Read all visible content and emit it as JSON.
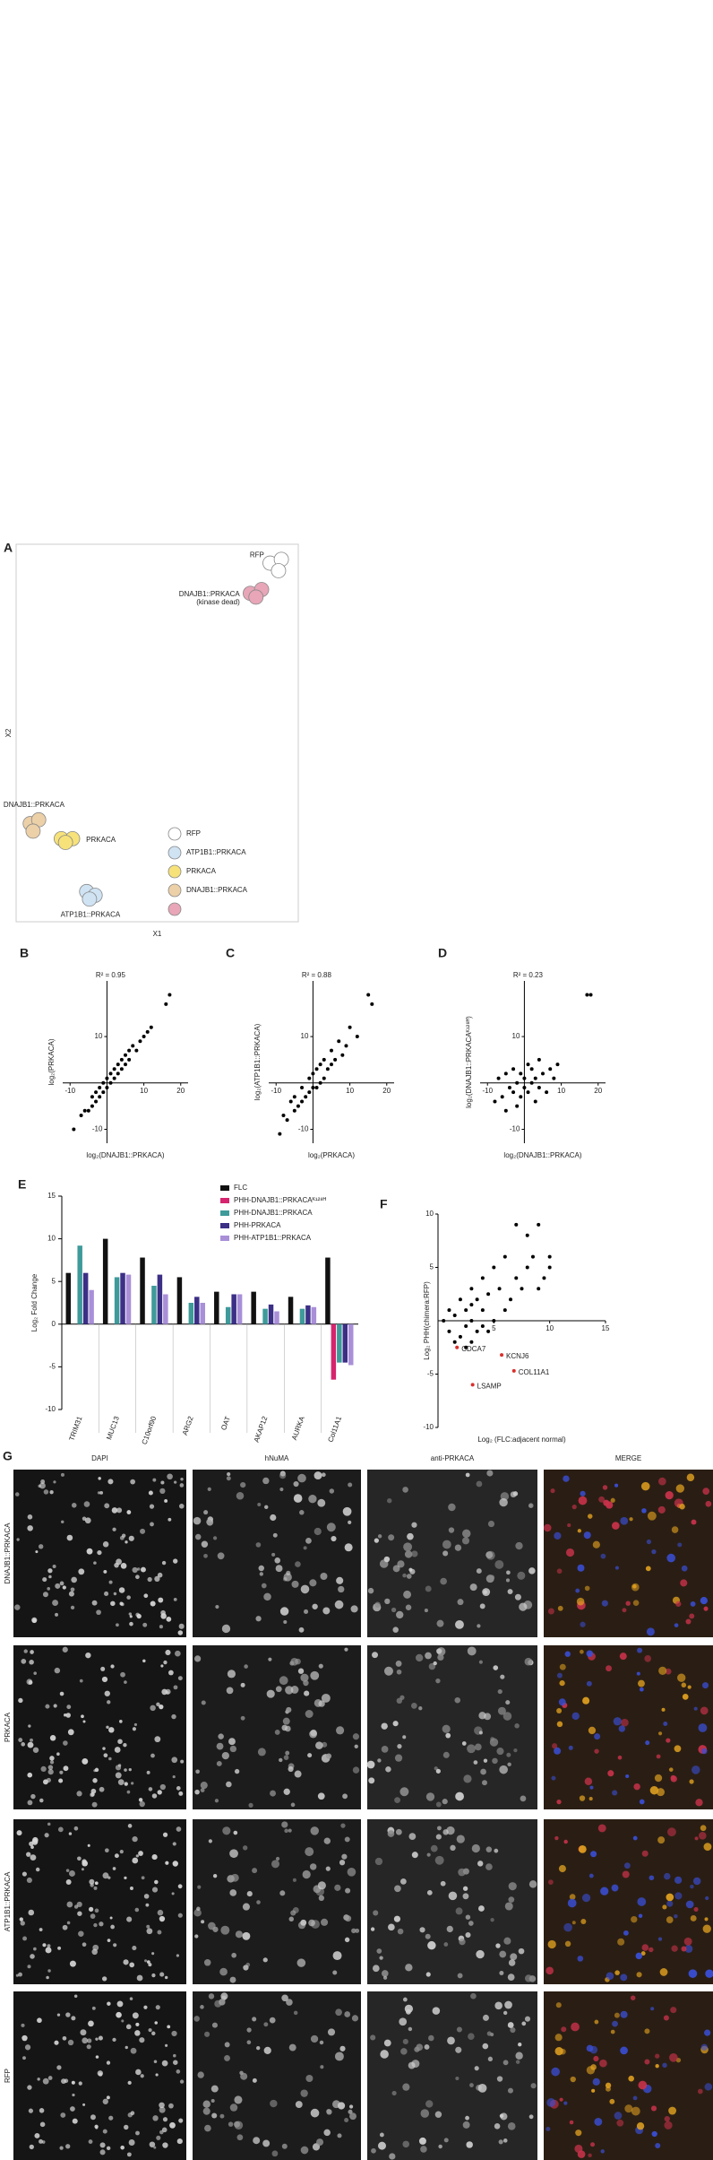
{
  "chart_data": [
    {
      "type": "scatter",
      "panel": "A",
      "xlabel": "X1",
      "ylabel": "X2",
      "frame": true,
      "marker": "circle-outline",
      "xlim": [
        0,
        10
      ],
      "ylim": [
        0,
        10
      ],
      "series": [
        {
          "name": "RFP",
          "label": [
            "RFP"
          ],
          "color": "#ffffff",
          "x": [
            9.0,
            9.4,
            9.3
          ],
          "y": [
            9.5,
            9.6,
            9.3
          ]
        },
        {
          "name": "ATP1B1::PRKACA",
          "label": [
            "ATP1B1::PRKACA"
          ],
          "color": "#cfe3f3",
          "x": [
            2.5,
            2.8,
            2.6
          ],
          "y": [
            0.8,
            0.7,
            0.6
          ]
        },
        {
          "name": "PRKACA",
          "label": [
            "PRKACA"
          ],
          "color": "#f7e27a",
          "x": [
            1.6,
            2.0,
            1.75
          ],
          "y": [
            2.2,
            2.2,
            2.1
          ]
        },
        {
          "name": "DNAJB1::PRKACA",
          "label": [
            "DNAJB1::PRKACA"
          ],
          "color": "#ecd0a8",
          "x": [
            0.5,
            0.8,
            0.6
          ],
          "y": [
            2.6,
            2.7,
            2.4
          ]
        },
        {
          "name": null,
          "label": [
            "DNAJB1::PRKACA",
            "(kinase dead)"
          ],
          "color": "#e8a6b8",
          "x": [
            8.3,
            8.7,
            8.5
          ],
          "y": [
            8.7,
            8.8,
            8.6
          ]
        }
      ]
    },
    {
      "type": "scatter",
      "panel": "B",
      "note": "R² = 0.95",
      "xlabel": "log₂(DNAJB1::PRKACA)",
      "ylabel": "log₂(PRKACA)",
      "axes_at_origin": true,
      "marker": "dot",
      "xlim": [
        -12,
        22
      ],
      "ylim": [
        -13,
        22
      ],
      "xticks": [
        -10,
        10,
        20
      ],
      "yticks": [
        -10,
        10
      ],
      "series": [
        {
          "name": null,
          "color": "#000000",
          "x": [
            -9,
            -7,
            -6,
            -5,
            -4,
            -4,
            -3,
            -3,
            -2,
            -2,
            -1,
            -1,
            0,
            0,
            1,
            1,
            2,
            2,
            3,
            3,
            4,
            4,
            5,
            5,
            6,
            6,
            7,
            8,
            9,
            10,
            11,
            12,
            16,
            17
          ],
          "y": [
            -10,
            -7,
            -6,
            -6,
            -3,
            -5,
            -2,
            -4,
            -1,
            -3,
            0,
            -2,
            1,
            -1,
            2,
            0,
            1,
            3,
            4,
            2,
            5,
            3,
            4,
            6,
            7,
            5,
            8,
            7,
            9,
            10,
            11,
            12,
            17,
            19
          ]
        }
      ]
    },
    {
      "type": "scatter",
      "panel": "C",
      "note": "R² = 0.88",
      "xlabel": "log₂(PRKACA)",
      "ylabel": "log₂(ATP1B1::PRKACA)",
      "axes_at_origin": true,
      "marker": "dot",
      "xlim": [
        -12,
        22
      ],
      "ylim": [
        -13,
        22
      ],
      "xticks": [
        -10,
        10,
        20
      ],
      "yticks": [
        -10,
        10
      ],
      "series": [
        {
          "name": null,
          "color": "#000000",
          "x": [
            -9,
            -8,
            -7,
            -6,
            -5,
            -5,
            -4,
            -3,
            -3,
            -2,
            -1,
            -1,
            0,
            0,
            1,
            1,
            2,
            2,
            3,
            3,
            4,
            5,
            5,
            6,
            7,
            8,
            9,
            10,
            12,
            15,
            16
          ],
          "y": [
            -11,
            -7,
            -8,
            -4,
            -6,
            -3,
            -5,
            -1,
            -4,
            -3,
            1,
            -2,
            2,
            -1,
            3,
            -1,
            4,
            0,
            5,
            1,
            3,
            7,
            4,
            5,
            9,
            6,
            8,
            12,
            10,
            19,
            17
          ]
        }
      ]
    },
    {
      "type": "scatter",
      "panel": "D",
      "note": "R² = 0.23",
      "xlabel": "log₂(DNAJB1::PRKACA)",
      "ylabel": "log₂(DNAJB1::PRKACAᴷ¹²⁸ᴴ)",
      "axes_at_origin": true,
      "marker": "dot",
      "xlim": [
        -12,
        22
      ],
      "ylim": [
        -13,
        22
      ],
      "xticks": [
        -10,
        10,
        20
      ],
      "yticks": [
        -10,
        10
      ],
      "series": [
        {
          "name": null,
          "color": "#000000",
          "x": [
            -8,
            -7,
            -6,
            -5,
            -5,
            -4,
            -3,
            -3,
            -2,
            -2,
            -1,
            -1,
            0,
            0,
            1,
            1,
            2,
            2,
            3,
            3,
            4,
            4,
            5,
            6,
            7,
            8,
            9,
            17,
            18
          ],
          "y": [
            -4,
            1,
            -3,
            2,
            -6,
            -1,
            3,
            -2,
            0,
            -5,
            2,
            -3,
            1,
            -1,
            4,
            -2,
            0,
            3,
            -4,
            1,
            5,
            -1,
            2,
            -2,
            3,
            1,
            4,
            19,
            19
          ]
        }
      ]
    },
    {
      "type": "bar",
      "panel": "E",
      "ylabel": "Log₂ Fold Change",
      "ylim": [
        -10,
        15
      ],
      "yticks": [
        -10,
        -5,
        0,
        5,
        10,
        15
      ],
      "categories": [
        "TRIM31",
        "MUC13",
        "C10orf90",
        "ARG2",
        "OAT",
        "AKAP12",
        "AURKA",
        "Col11A1"
      ],
      "series": [
        {
          "name": "FLC",
          "color": "#111111",
          "values": [
            6,
            10,
            7.8,
            5.5,
            3.8,
            3.8,
            3.2,
            7.8
          ]
        },
        {
          "name": "PHH-DNAJB1::PRKACAᴷ¹²⁸ᴴ",
          "color": "#d6246e",
          "values": [
            0,
            0,
            0,
            0,
            0,
            0,
            0,
            -6.5
          ]
        },
        {
          "name": "PHH-DNAJB1::PRKACA",
          "color": "#3f9a9a",
          "values": [
            9.2,
            5.5,
            4.5,
            2.5,
            2,
            1.8,
            1.8,
            -4.5
          ]
        },
        {
          "name": "PHH-PRKACA",
          "color": "#3b2f86",
          "values": [
            6,
            6,
            5.8,
            3.2,
            3.5,
            2.3,
            2.2,
            -4.5
          ]
        },
        {
          "name": "PHH-ATP1B1::PRKACA",
          "color": "#a98fd8",
          "values": [
            4,
            5.8,
            3.5,
            2.5,
            3.5,
            1.5,
            2,
            -4.8
          ]
        }
      ]
    },
    {
      "type": "scatter",
      "panel": "F",
      "xlabel": "Log₂ (FLC:adjacent normal)",
      "ylabel": "Log₂ PHH(chimera:RFP)",
      "axes_at_origin": true,
      "marker": "dot",
      "xlim": [
        0,
        15
      ],
      "ylim": [
        -10,
        10
      ],
      "xticks": [
        5,
        10,
        15
      ],
      "yticks": [
        -10,
        -5,
        5,
        10
      ],
      "series": [
        {
          "name": null,
          "color": "#000000",
          "x": [
            0.5,
            1,
            1,
            1.5,
            2,
            2,
            2.5,
            2.5,
            3,
            3,
            3,
            3.5,
            3.5,
            4,
            4,
            4,
            4.5,
            5,
            5,
            5.5,
            6,
            6,
            6.5,
            7,
            7,
            7.5,
            8,
            8,
            8.5,
            9,
            9,
            9.5,
            10,
            10,
            1.5,
            2.5,
            3,
            4.5
          ],
          "y": [
            0,
            1,
            -1,
            0.5,
            2,
            -1.5,
            1,
            -0.5,
            3,
            0,
            -2,
            2,
            -1,
            4,
            1,
            -0.5,
            2.5,
            5,
            0,
            3,
            6,
            1,
            2,
            4,
            9,
            3,
            5,
            8,
            6,
            9,
            3,
            4,
            6,
            5,
            -2,
            -2.5,
            1.5,
            -1
          ]
        },
        {
          "name": null,
          "color": "#d9302c",
          "point_labels": [
            "CDCA7",
            "KCNJ6",
            "COL11A1",
            "LSAMP"
          ],
          "x": [
            1.7,
            5.7,
            6.8,
            3.1
          ],
          "y": [
            -2.5,
            -3.2,
            -4.7,
            -6
          ]
        }
      ]
    }
  ],
  "panel_g": {
    "label": "G",
    "columns": [
      {
        "name": "DAPI",
        "color": "#4a7bd0"
      },
      {
        "name": "hNuMA",
        "color": "#e8c93a"
      },
      {
        "name": "anti-PRKACA",
        "color": "#e23d4a"
      },
      {
        "name": "MERGE",
        "color": "#666666"
      }
    ],
    "rows": [
      "DNAJB1::PRKACA",
      "PRKACA",
      "ATP1B1::PRKACA",
      "RFP"
    ]
  }
}
